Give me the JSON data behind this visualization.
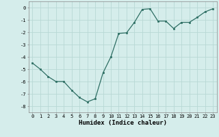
{
  "x": [
    0,
    1,
    2,
    3,
    4,
    5,
    6,
    7,
    8,
    9,
    10,
    11,
    12,
    13,
    14,
    15,
    16,
    17,
    18,
    19,
    20,
    21,
    22,
    23
  ],
  "y": [
    -4.5,
    -5.0,
    -5.6,
    -6.0,
    -6.0,
    -6.7,
    -7.3,
    -7.65,
    -7.4,
    -5.3,
    -4.0,
    -2.1,
    -2.05,
    -1.2,
    -0.15,
    -0.1,
    -1.1,
    -1.1,
    -1.7,
    -1.2,
    -1.2,
    -0.8,
    -0.35,
    -0.1
  ],
  "line_color": "#2d6e63",
  "marker": "s",
  "markersize": 1.8,
  "linewidth": 0.9,
  "background_color": "#d5edeb",
  "grid_color": "#b8d8d5",
  "xlabel": "Humidex (Indice chaleur)",
  "xlim": [
    -0.5,
    23.5
  ],
  "ylim": [
    -8.5,
    0.5
  ],
  "yticks": [
    0,
    -1,
    -2,
    -3,
    -4,
    -5,
    -6,
    -7,
    -8
  ],
  "xticks": [
    0,
    1,
    2,
    3,
    4,
    5,
    6,
    7,
    8,
    9,
    10,
    11,
    12,
    13,
    14,
    15,
    16,
    17,
    18,
    19,
    20,
    21,
    22,
    23
  ],
  "tick_fontsize": 5.0,
  "xlabel_fontsize": 6.5
}
